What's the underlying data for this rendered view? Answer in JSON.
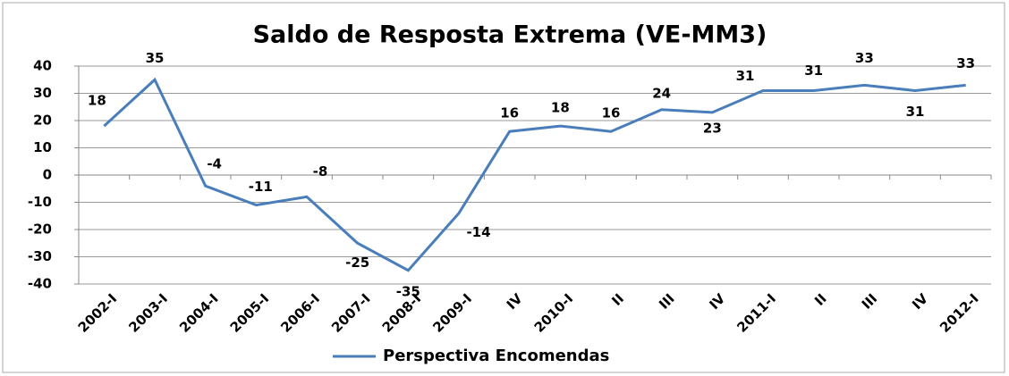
{
  "chart_data": {
    "type": "line",
    "title": "Saldo de Resposta Extrema (VE-MM3)",
    "categories": [
      "2002-I",
      "2003-I",
      "2004-I",
      "2005-I",
      "2006-I",
      "2007-I",
      "2008-I",
      "2009-I",
      "IV",
      "2010-I",
      "II",
      "III",
      "IV",
      "2011-I",
      "II",
      "III",
      "IV",
      "2012-I"
    ],
    "series": [
      {
        "name": "Perspectiva Encomendas",
        "color": "#4a7ebb",
        "values": [
          18,
          35,
          -4,
          -11,
          -8,
          -25,
          -35,
          -14,
          16,
          18,
          16,
          24,
          23,
          31,
          31,
          33,
          31,
          33
        ]
      }
    ],
    "ylim": [
      -40,
      40
    ],
    "yticks": [
      -40,
      -30,
      -20,
      -10,
      0,
      10,
      20,
      30,
      40
    ],
    "grid": true,
    "legend": "bottom"
  }
}
